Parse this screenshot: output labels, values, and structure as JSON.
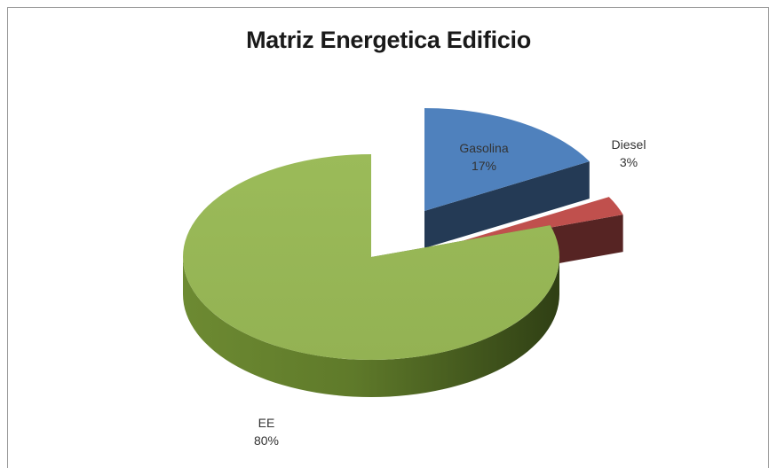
{
  "chart_data": {
    "type": "pie",
    "title": "Matriz Energetica Edificio",
    "slices": [
      {
        "label": "Gasolina",
        "value": 17,
        "value_label": "17%",
        "color": "#4f81bd",
        "exploded": true
      },
      {
        "label": "Diesel",
        "value": 3,
        "value_label": "3%",
        "color": "#c0504d",
        "exploded": true
      },
      {
        "label": "EE",
        "value": 80,
        "value_label": "80%",
        "color": "#9bbb59",
        "exploded": false
      }
    ],
    "style": "3d-exploded",
    "legend": "none"
  }
}
